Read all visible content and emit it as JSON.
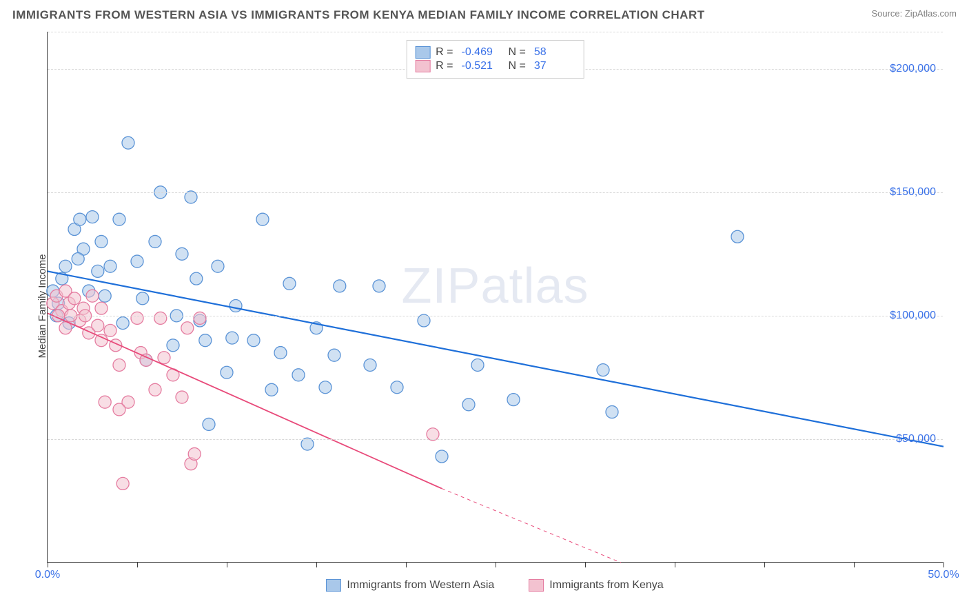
{
  "title": "IMMIGRANTS FROM WESTERN ASIA VS IMMIGRANTS FROM KENYA MEDIAN FAMILY INCOME CORRELATION CHART",
  "source": "Source: ZipAtlas.com",
  "watermark": "ZIPatlas",
  "y_axis_title": "Median Family Income",
  "chart": {
    "type": "scatter",
    "xlim": [
      0,
      50
    ],
    "ylim": [
      0,
      215000
    ],
    "x_ticks": [
      0,
      5,
      10,
      15,
      20,
      25,
      30,
      35,
      40,
      45,
      50
    ],
    "x_tick_labels": {
      "0": "0.0%",
      "50": "50.0%"
    },
    "y_gridlines": [
      50000,
      100000,
      150000,
      200000
    ],
    "y_tick_labels": {
      "50000": "$50,000",
      "100000": "$100,000",
      "150000": "$150,000",
      "200000": "$200,000"
    },
    "background_color": "#ffffff",
    "grid_color": "#d8d8d8",
    "axis_color": "#3c3c3c",
    "tick_label_color": "#3b72e8",
    "marker_radius": 9,
    "marker_opacity": 0.55,
    "marker_stroke_width": 1.3,
    "series": [
      {
        "name": "Immigrants from Western Asia",
        "fill_color": "#a9c8ea",
        "stroke_color": "#5a93d6",
        "trend_color": "#1e6fd9",
        "trend_width": 2.2,
        "r_value": "-0.469",
        "n_value": "58",
        "trend_line": {
          "x1": 0,
          "y1": 118000,
          "x2": 50,
          "y2": 47000
        },
        "points": [
          [
            0.5,
            100000
          ],
          [
            0.6,
            105000
          ],
          [
            0.8,
            115000
          ],
          [
            1.0,
            120000
          ],
          [
            1.2,
            97000
          ],
          [
            1.5,
            135000
          ],
          [
            1.8,
            139000
          ],
          [
            2.0,
            127000
          ],
          [
            2.3,
            110000
          ],
          [
            2.5,
            140000
          ],
          [
            2.8,
            118000
          ],
          [
            3.0,
            130000
          ],
          [
            3.2,
            108000
          ],
          [
            3.5,
            120000
          ],
          [
            4.0,
            139000
          ],
          [
            4.2,
            97000
          ],
          [
            4.5,
            170000
          ],
          [
            5.0,
            122000
          ],
          [
            5.3,
            107000
          ],
          [
            5.5,
            82000
          ],
          [
            6.0,
            130000
          ],
          [
            6.3,
            150000
          ],
          [
            7.0,
            88000
          ],
          [
            7.2,
            100000
          ],
          [
            7.5,
            125000
          ],
          [
            8.0,
            148000
          ],
          [
            8.3,
            115000
          ],
          [
            8.5,
            98000
          ],
          [
            8.8,
            90000
          ],
          [
            9.0,
            56000
          ],
          [
            9.5,
            120000
          ],
          [
            10.0,
            77000
          ],
          [
            10.3,
            91000
          ],
          [
            10.5,
            104000
          ],
          [
            11.5,
            90000
          ],
          [
            12.0,
            139000
          ],
          [
            12.5,
            70000
          ],
          [
            13.0,
            85000
          ],
          [
            13.5,
            113000
          ],
          [
            14.0,
            76000
          ],
          [
            14.5,
            48000
          ],
          [
            15.0,
            95000
          ],
          [
            15.5,
            71000
          ],
          [
            16.0,
            84000
          ],
          [
            16.3,
            112000
          ],
          [
            18.0,
            80000
          ],
          [
            18.5,
            112000
          ],
          [
            19.5,
            71000
          ],
          [
            21.0,
            98000
          ],
          [
            22.0,
            43000
          ],
          [
            23.5,
            64000
          ],
          [
            24.0,
            80000
          ],
          [
            26.0,
            66000
          ],
          [
            31.0,
            78000
          ],
          [
            31.5,
            61000
          ],
          [
            38.5,
            132000
          ],
          [
            0.3,
            110000
          ],
          [
            1.7,
            123000
          ]
        ]
      },
      {
        "name": "Immigrants from Kenya",
        "fill_color": "#f3c2d0",
        "stroke_color": "#e57ca0",
        "trend_color": "#e84a7a",
        "trend_width": 1.8,
        "r_value": "-0.521",
        "n_value": "37",
        "trend_line": {
          "x1": 0,
          "y1": 101000,
          "x2": 22,
          "y2": 30000
        },
        "trend_line_dashed_ext": {
          "x1": 22,
          "y1": 30000,
          "x2": 32,
          "y2": 0
        },
        "points": [
          [
            0.3,
            105000
          ],
          [
            0.5,
            108000
          ],
          [
            0.8,
            102000
          ],
          [
            1.0,
            110000
          ],
          [
            1.2,
            105000
          ],
          [
            1.5,
            107000
          ],
          [
            1.8,
            98000
          ],
          [
            2.0,
            103000
          ],
          [
            2.3,
            93000
          ],
          [
            2.5,
            108000
          ],
          [
            2.8,
            96000
          ],
          [
            3.0,
            90000
          ],
          [
            3.0,
            103000
          ],
          [
            3.2,
            65000
          ],
          [
            3.5,
            94000
          ],
          [
            3.8,
            88000
          ],
          [
            4.0,
            80000
          ],
          [
            4.2,
            32000
          ],
          [
            4.5,
            65000
          ],
          [
            5.0,
            99000
          ],
          [
            5.2,
            85000
          ],
          [
            5.5,
            82000
          ],
          [
            6.0,
            70000
          ],
          [
            6.3,
            99000
          ],
          [
            6.5,
            83000
          ],
          [
            7.0,
            76000
          ],
          [
            7.5,
            67000
          ],
          [
            7.8,
            95000
          ],
          [
            8.0,
            40000
          ],
          [
            8.2,
            44000
          ],
          [
            8.5,
            99000
          ],
          [
            1.3,
            100000
          ],
          [
            2.1,
            100000
          ],
          [
            1.0,
            95000
          ],
          [
            0.6,
            100000
          ],
          [
            21.5,
            52000
          ],
          [
            4.0,
            62000
          ]
        ]
      }
    ]
  },
  "legend_bottom": [
    {
      "label": "Immigrants from Western Asia",
      "fill": "#a9c8ea",
      "stroke": "#5a93d6"
    },
    {
      "label": "Immigrants from Kenya",
      "fill": "#f3c2d0",
      "stroke": "#e57ca0"
    }
  ]
}
